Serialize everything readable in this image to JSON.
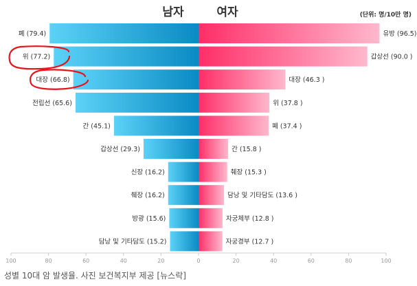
{
  "chart_data": {
    "type": "bar",
    "header": {
      "male": "남자",
      "female": "여자",
      "unit": "(단위: 명/10만 명)"
    },
    "male": {
      "categories": [
        "폐",
        "위",
        "대장",
        "전립선",
        "간",
        "갑상선",
        "신장",
        "췌장",
        "방광",
        "담낭 및 기타담도"
      ],
      "values": [
        79.4,
        77.2,
        66.8,
        65.6,
        45.1,
        29.3,
        16.2,
        16.2,
        15.6,
        15.2
      ],
      "labels": [
        "폐 (79.4)",
        "위 (77.2)",
        "대장 (66.8)",
        "전립선 (65.6)",
        "간 (45.1)",
        "갑상선 (29.3)",
        "신장 (16.2)",
        "췌장 (16.2)",
        "방광 (15.6)",
        "담낭 및 기타담도 (15.2)"
      ]
    },
    "female": {
      "categories": [
        "유방",
        "갑상선",
        "대장",
        "위",
        "폐",
        "간",
        "췌장",
        "담낭 및 기타담도",
        "자궁체부",
        "자궁경부"
      ],
      "values": [
        96.5,
        90.0,
        46.3,
        37.8,
        37.4,
        15.8,
        15.3,
        13.6,
        12.8,
        12.7
      ],
      "labels": [
        "유방 (96.5)",
        "갑상선 (90.0 )",
        "대장 (46.3 )",
        "위 (37.8 )",
        "폐 (37.4 )",
        "간 (15.8 )",
        "췌장 (15.3 )",
        "담낭 및 기타담도 (13.6 )",
        "자궁체부 (12.8 )",
        "자궁경부 (12.7 )"
      ]
    },
    "x_ticks": [
      "100",
      "80",
      "60",
      "40",
      "20",
      "0",
      "20",
      "40",
      "60",
      "80",
      "100"
    ],
    "xlim": [
      -100,
      100
    ],
    "grid": false,
    "colors": {
      "male_light": "#5cd2f7",
      "male_dark": "#0a8bc4",
      "female_light": "#ffb8cd",
      "female_dark": "#ff2e68",
      "highlight": "#e8141c",
      "axis": "#cccccc",
      "text": "#333333",
      "tick": "#999999"
    }
  },
  "caption": "성별 10대 암 발생율. 사진 보건복지부 제공 [뉴스락]"
}
